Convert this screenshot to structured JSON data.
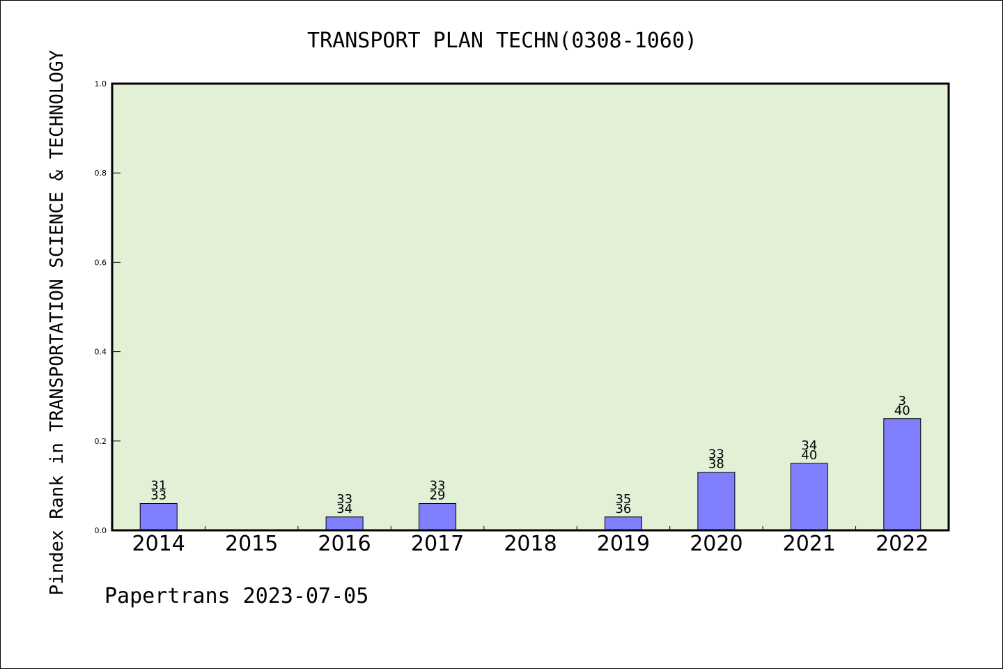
{
  "chart_data": {
    "type": "bar",
    "title": "TRANSPORT PLAN TECHN(0308-1060)",
    "xlabel": "",
    "ylabel": "Pindex Rank in TRANSPORTATION SCIENCE & TECHNOLOGY",
    "ylim": [
      0,
      1.0
    ],
    "yticks": [
      "0.0",
      "0.2",
      "0.4",
      "0.6",
      "0.8",
      "1.0"
    ],
    "categories": [
      "2014",
      "2015",
      "2016",
      "2017",
      "2018",
      "2019",
      "2020",
      "2021",
      "2022"
    ],
    "values": [
      0.06,
      0,
      0.03,
      0.06,
      0,
      0.03,
      0.13,
      0.15,
      0.25
    ],
    "bar_labels": [
      [
        "31",
        "33"
      ],
      [],
      [
        "33",
        "34"
      ],
      [
        "33",
        "29"
      ],
      [],
      [
        "35",
        "36"
      ],
      [
        "33",
        "38"
      ],
      [
        "34",
        "40"
      ],
      [
        "3",
        "40"
      ]
    ],
    "grid": false,
    "legend": "none",
    "colors": {
      "plot_background": "#e2f0d6",
      "bar_fill": "#8080ff",
      "bar_stroke": "#000000"
    }
  },
  "footer": "Papertrans 2023-07-05"
}
